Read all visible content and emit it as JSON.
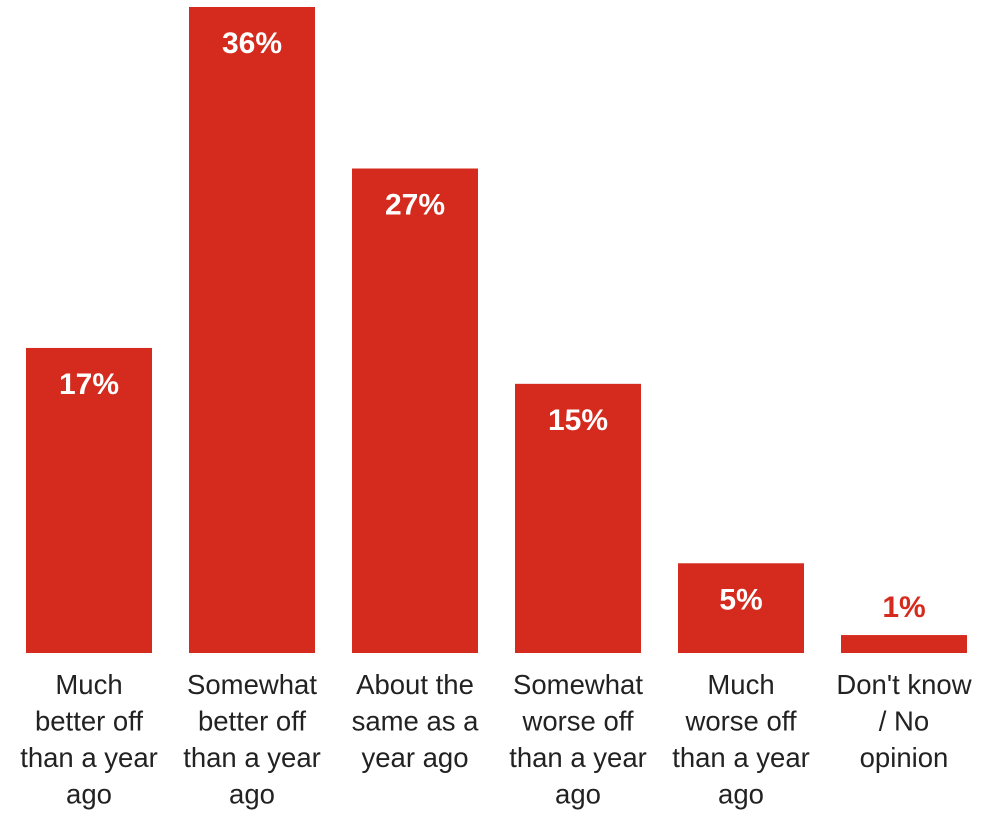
{
  "chart_data": {
    "type": "bar",
    "categories": [
      [
        "Much",
        "better off",
        "than a year",
        "ago"
      ],
      [
        "Somewhat",
        "better off",
        "than a year",
        "ago"
      ],
      [
        "About the",
        "same as a",
        "year ago"
      ],
      [
        "Somewhat",
        "worse off",
        "than a year",
        "ago"
      ],
      [
        "Much",
        "worse off",
        "than a year",
        "ago"
      ],
      [
        "Don't know",
        "/ No",
        "opinion"
      ]
    ],
    "values": [
      17,
      36,
      27,
      15,
      5,
      1
    ],
    "value_labels": [
      "17%",
      "36%",
      "27%",
      "15%",
      "5%",
      "1%"
    ],
    "ylim": [
      0,
      36
    ],
    "grid": false,
    "legend": "none",
    "bar_color": "#d52b1e",
    "label_inside_color": "#ffffff",
    "label_outside_color": "#d52b1e"
  }
}
